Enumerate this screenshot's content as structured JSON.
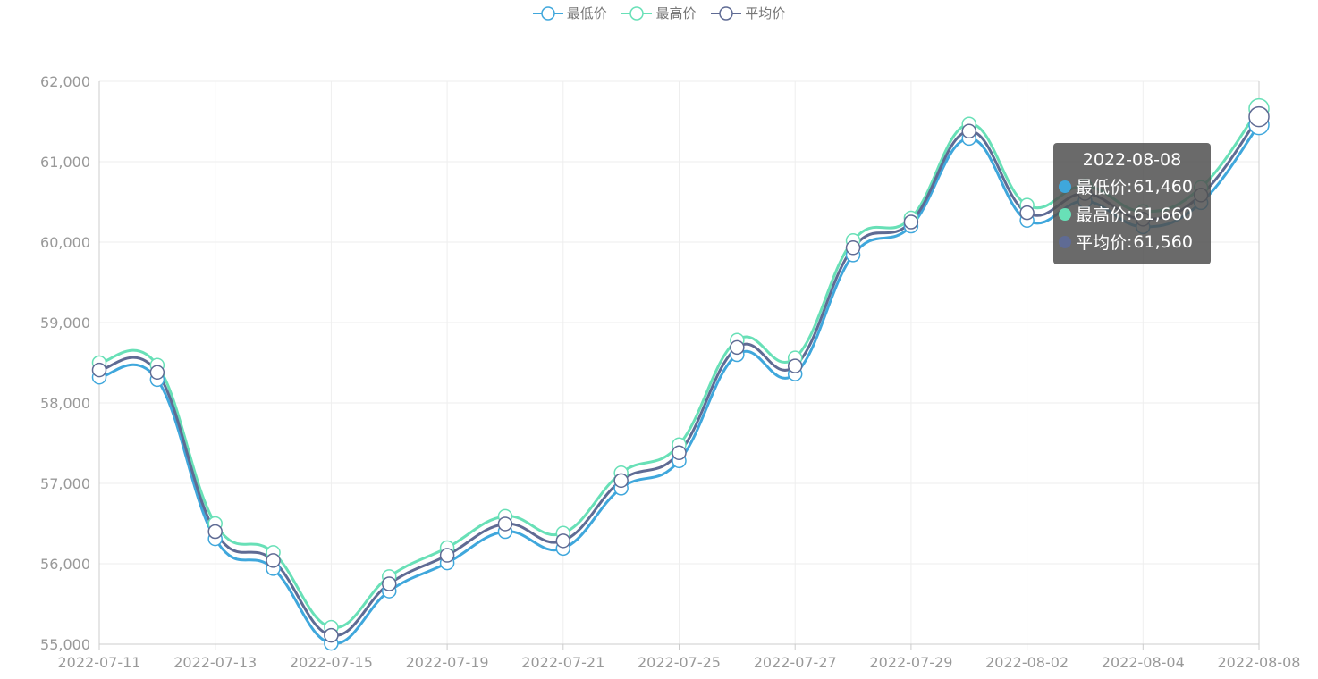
{
  "chart_data": {
    "type": "line",
    "x": [
      "2022-07-11",
      "2022-07-12",
      "2022-07-13",
      "2022-07-14",
      "2022-07-15",
      "2022-07-18",
      "2022-07-19",
      "2022-07-20",
      "2022-07-21",
      "2022-07-22",
      "2022-07-25",
      "2022-07-26",
      "2022-07-27",
      "2022-07-28",
      "2022-07-29",
      "2022-08-01",
      "2022-08-02",
      "2022-08-03",
      "2022-08-04",
      "2022-08-05",
      "2022-08-08"
    ],
    "x_tick_labels": [
      "2022-07-11",
      "2022-07-13",
      "2022-07-15",
      "2022-07-19",
      "2022-07-21",
      "2022-07-25",
      "2022-07-27",
      "2022-07-29",
      "2022-08-02",
      "2022-08-04",
      "2022-08-08"
    ],
    "series": [
      {
        "name": "最低价",
        "color": "#3fa7dc",
        "values": [
          58320,
          58290,
          56310,
          55940,
          55010,
          55660,
          56010,
          56400,
          56190,
          56940,
          57280,
          58600,
          58360,
          59840,
          60200,
          61290,
          60270,
          60510,
          60190,
          60490,
          61460
        ]
      },
      {
        "name": "最高价",
        "color": "#68e0b7",
        "values": [
          58500,
          58470,
          56500,
          56140,
          55210,
          55840,
          56200,
          56590,
          56380,
          57130,
          57480,
          58780,
          58560,
          60020,
          60300,
          61470,
          60460,
          60700,
          60380,
          60680,
          61660
        ]
      },
      {
        "name": "平均价",
        "color": "#5f6b94",
        "values": [
          58410,
          58380,
          56400,
          56040,
          55110,
          55750,
          56105,
          56495,
          56285,
          57035,
          57380,
          58690,
          58460,
          59930,
          60250,
          61380,
          60365,
          60605,
          60285,
          60585,
          61560
        ]
      }
    ],
    "ylim": [
      55000,
      62000
    ],
    "y_ticks": [
      55000,
      56000,
      57000,
      58000,
      59000,
      60000,
      61000,
      62000
    ],
    "y_tick_labels": [
      "55,000",
      "56,000",
      "57,000",
      "58,000",
      "59,000",
      "60,000",
      "61,000",
      "62,000"
    ],
    "grid": true,
    "legend": "top-center",
    "title": "",
    "xlabel": "",
    "ylabel": ""
  },
  "tooltip": {
    "title": "2022-08-08",
    "rows": [
      {
        "label": "最低价",
        "sep": ": ",
        "value": "61,460",
        "color": "#3fa7dc"
      },
      {
        "label": "最高价",
        "sep": ": ",
        "value": "61,660",
        "color": "#68e0b7"
      },
      {
        "label": "平均价",
        "sep": ": ",
        "value": "61,560",
        "color": "#5f6b94"
      }
    ]
  },
  "colors": {
    "grid": "#eeeeee",
    "axis": "#cccccc",
    "tick_text": "#999999",
    "point_fill": "#ffffff"
  }
}
